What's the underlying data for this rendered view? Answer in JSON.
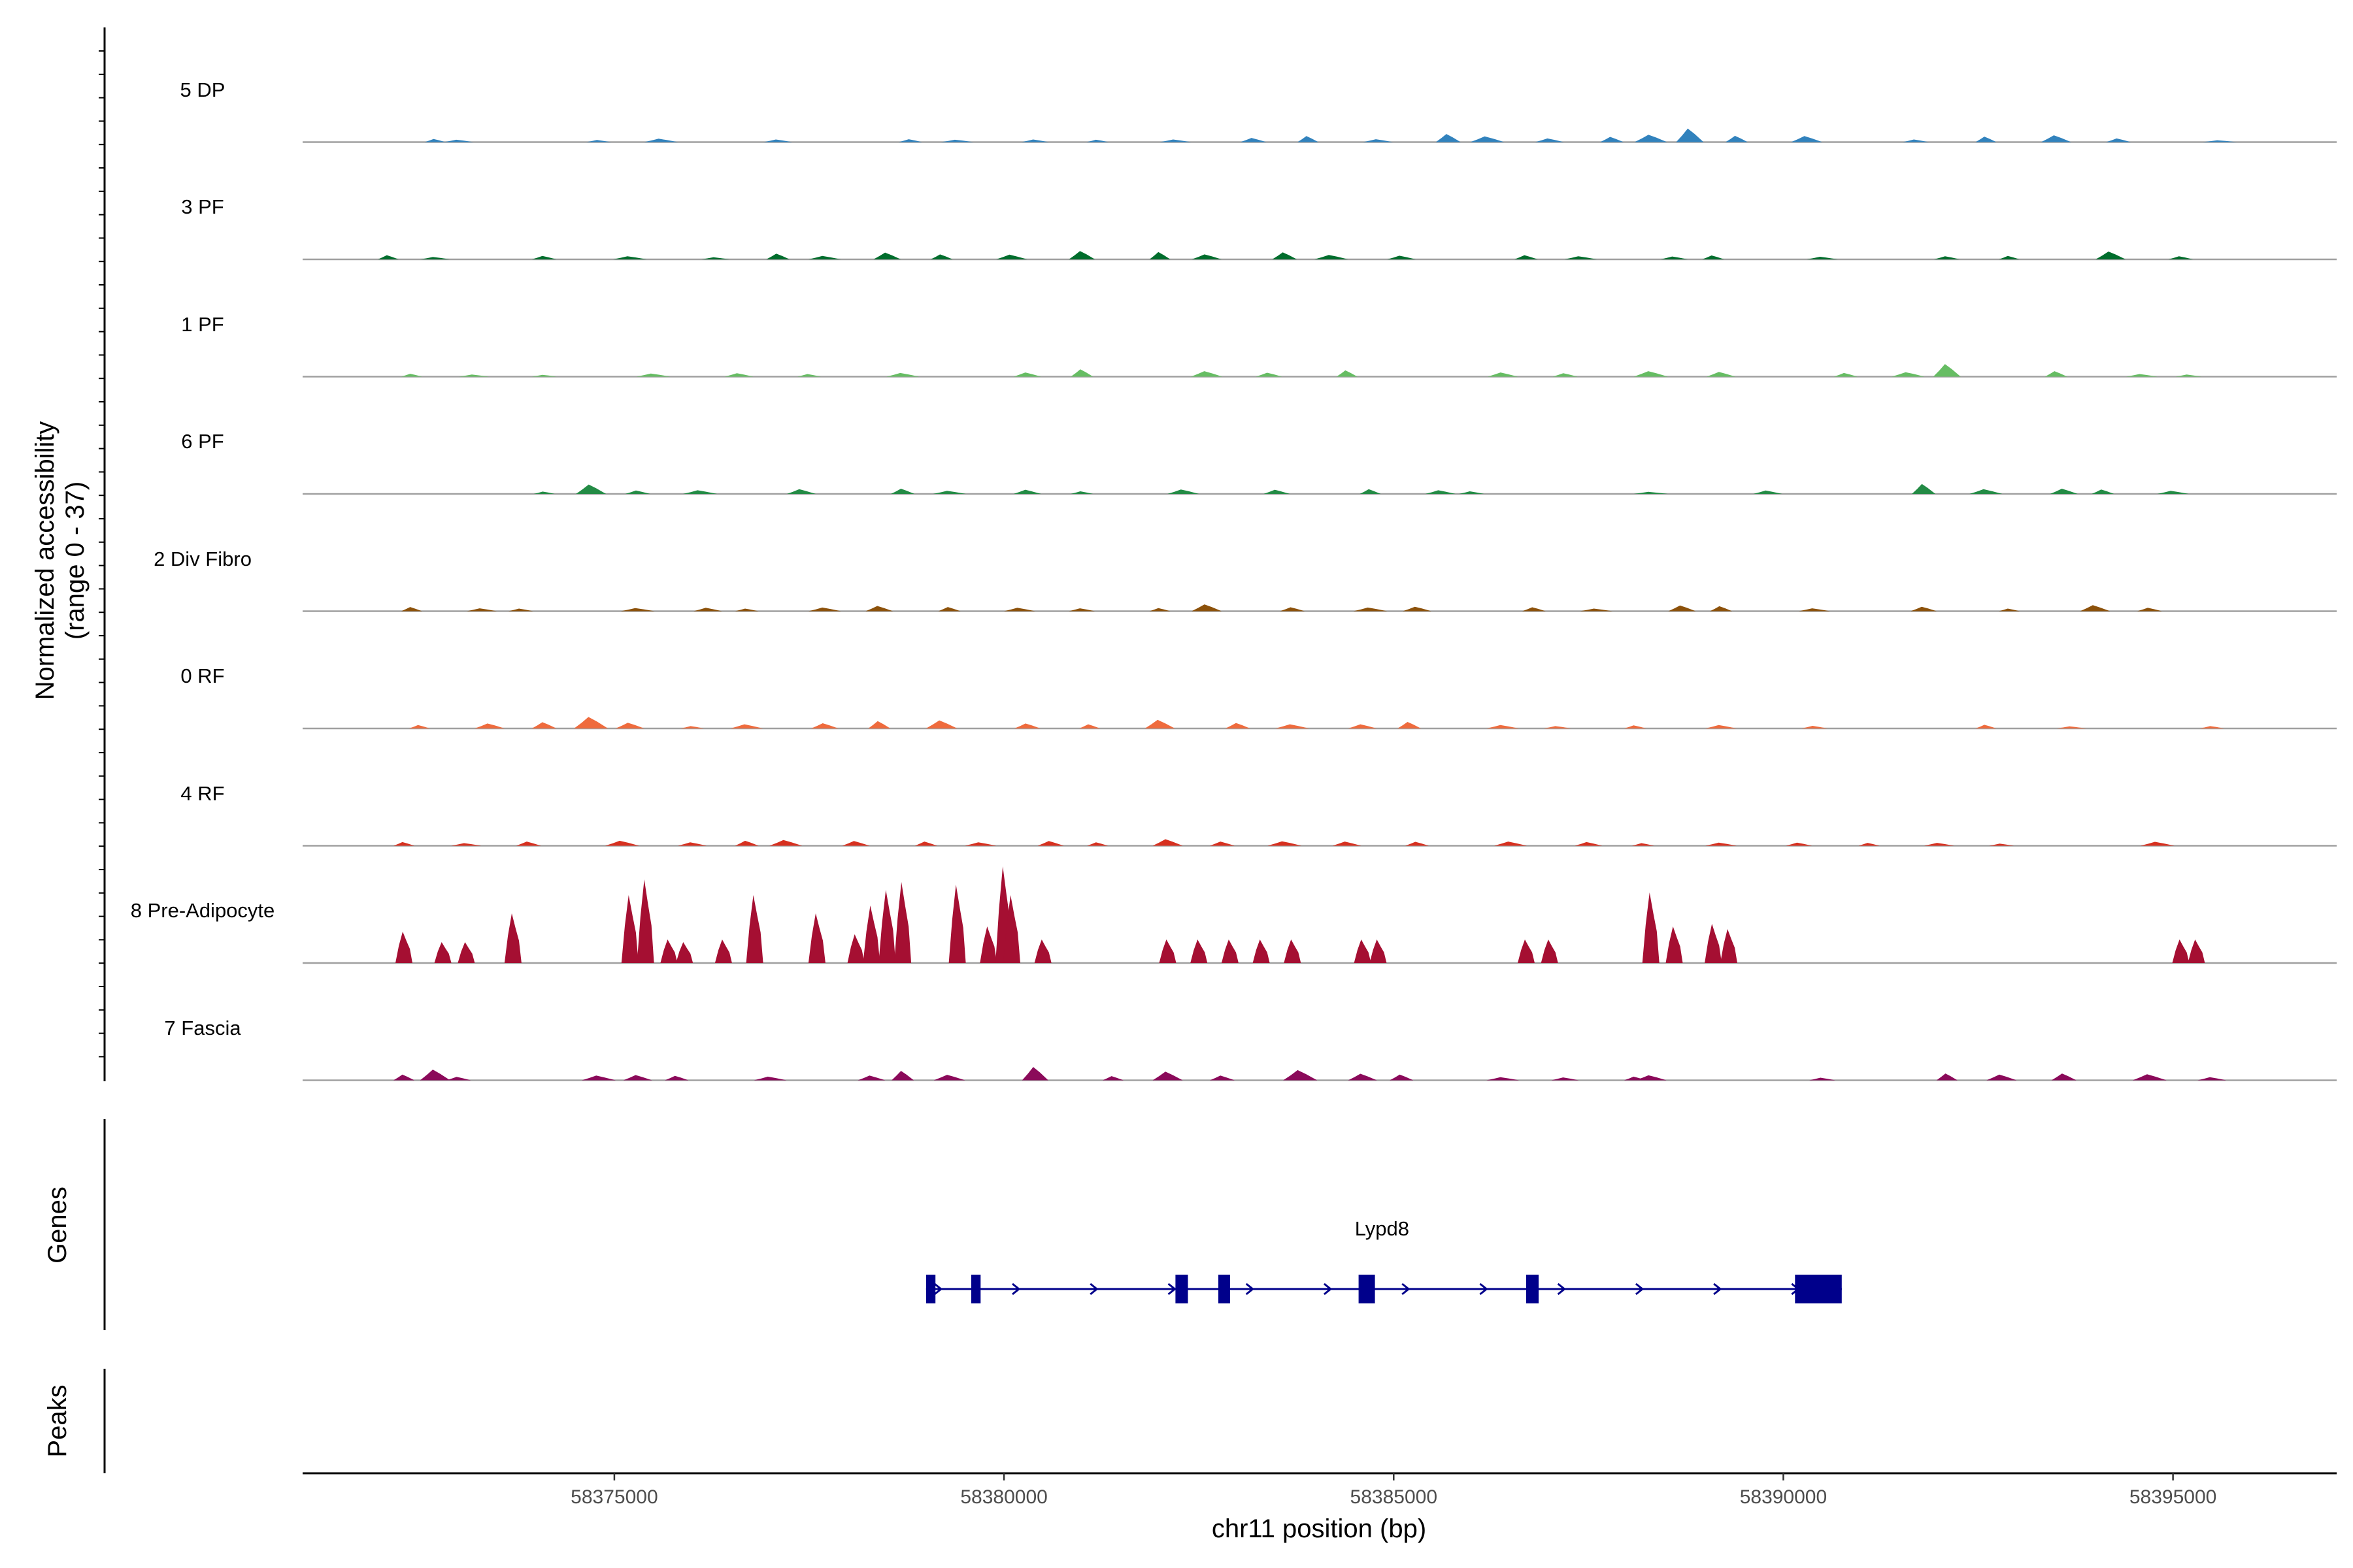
{
  "chart_data": {
    "type": "area",
    "title": "",
    "ylabel_line1": "Normalized accessibility",
    "ylabel_line2": "(range 0 - 37)",
    "y_range": [
      0,
      37
    ],
    "xlabel": "chr11 position (bp)",
    "chromosome": "chr11",
    "x_range": [
      58371000,
      58397100
    ],
    "x_ticks": [
      58375000,
      58380000,
      58385000,
      58390000,
      58395000
    ],
    "x_tick_labels": [
      "58375000",
      "58380000",
      "58385000",
      "58390000",
      "58395000"
    ],
    "genes_panel_label": "Genes",
    "peaks_panel_label": "Peaks",
    "tracks": [
      {
        "name": "5 DP",
        "color": "#3182bd",
        "peaks": [
          [
            58372700,
            1.2
          ],
          [
            58373000,
            0.9
          ],
          [
            58374800,
            0.8
          ],
          [
            58375600,
            1.3
          ],
          [
            58377100,
            1.0
          ],
          [
            58378800,
            1.1
          ],
          [
            58379400,
            0.9
          ],
          [
            58380400,
            1.0
          ],
          [
            58381200,
            0.9
          ],
          [
            58382200,
            1.0
          ],
          [
            58383200,
            1.6
          ],
          [
            58383900,
            2.3
          ],
          [
            58384800,
            1.1
          ],
          [
            58385700,
            3.1
          ],
          [
            58386200,
            2.2
          ],
          [
            58387000,
            1.4
          ],
          [
            58387800,
            2.0
          ],
          [
            58388300,
            2.8
          ],
          [
            58388800,
            5.2
          ],
          [
            58389400,
            2.4
          ],
          [
            58390300,
            2.3
          ],
          [
            58391700,
            1.0
          ],
          [
            58392600,
            2.1
          ],
          [
            58393500,
            2.6
          ],
          [
            58394300,
            1.4
          ],
          [
            58395600,
            0.7
          ]
        ]
      },
      {
        "name": "3 PF",
        "color": "#006d2c",
        "peaks": [
          [
            58372100,
            1.6
          ],
          [
            58372700,
            0.9
          ],
          [
            58374100,
            1.3
          ],
          [
            58375200,
            1.2
          ],
          [
            58376300,
            0.8
          ],
          [
            58377100,
            2.2
          ],
          [
            58377700,
            1.3
          ],
          [
            58378500,
            2.6
          ],
          [
            58379200,
            1.9
          ],
          [
            58380100,
            1.8
          ],
          [
            58381000,
            3.2
          ],
          [
            58382000,
            2.8
          ],
          [
            58382600,
            1.9
          ],
          [
            58383600,
            2.7
          ],
          [
            58384200,
            1.7
          ],
          [
            58385100,
            1.4
          ],
          [
            58386700,
            1.6
          ],
          [
            58387400,
            1.2
          ],
          [
            58388600,
            1.1
          ],
          [
            58389100,
            1.5
          ],
          [
            58390500,
            1.0
          ],
          [
            58392100,
            1.2
          ],
          [
            58392900,
            1.3
          ],
          [
            58394200,
            3.0
          ],
          [
            58395100,
            1.2
          ]
        ]
      },
      {
        "name": "1 PF",
        "color": "#66bd63",
        "peaks": [
          [
            58372400,
            1.1
          ],
          [
            58373200,
            0.8
          ],
          [
            58374100,
            0.7
          ],
          [
            58375500,
            1.2
          ],
          [
            58376600,
            1.3
          ],
          [
            58377500,
            1.0
          ],
          [
            58378700,
            1.4
          ],
          [
            58380300,
            1.6
          ],
          [
            58381000,
            2.8
          ],
          [
            58382600,
            2.1
          ],
          [
            58383400,
            1.5
          ],
          [
            58384400,
            2.4
          ],
          [
            58386400,
            1.6
          ],
          [
            58387200,
            1.3
          ],
          [
            58388300,
            2.1
          ],
          [
            58389200,
            1.8
          ],
          [
            58390800,
            1.4
          ],
          [
            58391600,
            1.7
          ],
          [
            58392100,
            4.8
          ],
          [
            58393500,
            2.1
          ],
          [
            58394600,
            1.0
          ],
          [
            58395200,
            0.8
          ]
        ]
      },
      {
        "name": "6 PF",
        "color": "#238b45",
        "peaks": [
          [
            58374100,
            0.9
          ],
          [
            58374700,
            3.6
          ],
          [
            58375300,
            1.3
          ],
          [
            58376100,
            1.4
          ],
          [
            58377400,
            1.8
          ],
          [
            58378700,
            2.0
          ],
          [
            58379300,
            1.2
          ],
          [
            58380300,
            1.6
          ],
          [
            58381000,
            1.0
          ],
          [
            58382300,
            1.7
          ],
          [
            58383500,
            1.6
          ],
          [
            58384700,
            1.8
          ],
          [
            58385600,
            1.4
          ],
          [
            58386000,
            1.0
          ],
          [
            58388300,
            0.8
          ],
          [
            58389800,
            1.3
          ],
          [
            58391800,
            3.8
          ],
          [
            58392600,
            1.8
          ],
          [
            58393600,
            2.0
          ],
          [
            58394100,
            1.7
          ],
          [
            58395000,
            1.2
          ]
        ]
      },
      {
        "name": "2 Div Fibro",
        "color": "#8c510a",
        "peaks": [
          [
            58372400,
            1.6
          ],
          [
            58373300,
            1.1
          ],
          [
            58373800,
            1.0
          ],
          [
            58375300,
            1.2
          ],
          [
            58376200,
            1.3
          ],
          [
            58376700,
            1.0
          ],
          [
            58377700,
            1.4
          ],
          [
            58378400,
            2.0
          ],
          [
            58379300,
            1.6
          ],
          [
            58380200,
            1.3
          ],
          [
            58381000,
            1.1
          ],
          [
            58382000,
            1.2
          ],
          [
            58382600,
            2.6
          ],
          [
            58383700,
            1.5
          ],
          [
            58384700,
            1.4
          ],
          [
            58385300,
            1.7
          ],
          [
            58386800,
            1.5
          ],
          [
            58387600,
            1.0
          ],
          [
            58388700,
            2.2
          ],
          [
            58389200,
            1.9
          ],
          [
            58390400,
            1.1
          ],
          [
            58391800,
            1.7
          ],
          [
            58392900,
            1.0
          ],
          [
            58394000,
            2.3
          ],
          [
            58394700,
            1.3
          ]
        ]
      },
      {
        "name": "0 RF",
        "color": "#ef6b3d",
        "peaks": [
          [
            58372500,
            1.3
          ],
          [
            58373400,
            1.9
          ],
          [
            58374100,
            2.4
          ],
          [
            58374700,
            4.4
          ],
          [
            58375200,
            2.2
          ],
          [
            58376000,
            0.9
          ],
          [
            58376700,
            1.6
          ],
          [
            58377700,
            2.0
          ],
          [
            58378400,
            2.8
          ],
          [
            58379200,
            3.1
          ],
          [
            58380300,
            1.9
          ],
          [
            58381100,
            1.6
          ],
          [
            58382000,
            3.3
          ],
          [
            58383000,
            2.1
          ],
          [
            58383700,
            1.6
          ],
          [
            58384600,
            1.6
          ],
          [
            58385200,
            2.5
          ],
          [
            58386400,
            1.3
          ],
          [
            58387100,
            0.9
          ],
          [
            58388100,
            1.2
          ],
          [
            58389200,
            1.3
          ],
          [
            58390400,
            1.0
          ],
          [
            58392600,
            1.4
          ],
          [
            58393700,
            0.8
          ],
          [
            58395500,
            0.9
          ]
        ]
      },
      {
        "name": "4 RF",
        "color": "#d7301f",
        "peaks": [
          [
            58372300,
            1.4
          ],
          [
            58373100,
            1.0
          ],
          [
            58373900,
            1.6
          ],
          [
            58375100,
            1.9
          ],
          [
            58376000,
            1.3
          ],
          [
            58376700,
            1.9
          ],
          [
            58377200,
            2.2
          ],
          [
            58378100,
            1.8
          ],
          [
            58379000,
            1.6
          ],
          [
            58379700,
            1.3
          ],
          [
            58380600,
            1.8
          ],
          [
            58381200,
            1.3
          ],
          [
            58382100,
            2.5
          ],
          [
            58382800,
            1.6
          ],
          [
            58383600,
            1.7
          ],
          [
            58384400,
            1.6
          ],
          [
            58385300,
            1.5
          ],
          [
            58386500,
            1.6
          ],
          [
            58387500,
            1.4
          ],
          [
            58388200,
            1.0
          ],
          [
            58389200,
            1.2
          ],
          [
            58390200,
            1.2
          ],
          [
            58391100,
            1.1
          ],
          [
            58392000,
            1.1
          ],
          [
            58392800,
            0.8
          ],
          [
            58394800,
            1.5
          ]
        ]
      },
      {
        "name": "8 Pre-Adipocyte",
        "color": "#a50f32",
        "peaks": [
          [
            58372300,
            12
          ],
          [
            58372800,
            8
          ],
          [
            58373100,
            8
          ],
          [
            58373700,
            19
          ],
          [
            58375200,
            26
          ],
          [
            58375400,
            32
          ],
          [
            58375700,
            9
          ],
          [
            58375900,
            8
          ],
          [
            58376400,
            9
          ],
          [
            58376800,
            26
          ],
          [
            58377600,
            19
          ],
          [
            58378100,
            11
          ],
          [
            58378300,
            22
          ],
          [
            58378500,
            28
          ],
          [
            58378700,
            31
          ],
          [
            58379400,
            30
          ],
          [
            58379800,
            14
          ],
          [
            58380000,
            37
          ],
          [
            58380100,
            26
          ],
          [
            58380500,
            9
          ],
          [
            58382100,
            9
          ],
          [
            58382500,
            9
          ],
          [
            58382900,
            9
          ],
          [
            58383300,
            9
          ],
          [
            58383700,
            9
          ],
          [
            58384600,
            9
          ],
          [
            58384800,
            9
          ],
          [
            58386700,
            9
          ],
          [
            58387000,
            9
          ],
          [
            58388300,
            27
          ],
          [
            58388600,
            14
          ],
          [
            58389100,
            15
          ],
          [
            58389300,
            13
          ],
          [
            58395100,
            9
          ],
          [
            58395300,
            9
          ]
        ]
      },
      {
        "name": "7 Fascia",
        "color": "#8b0a5a",
        "peaks": [
          [
            58372300,
            2.2
          ],
          [
            58372700,
            4.1
          ],
          [
            58373000,
            1.3
          ],
          [
            58374800,
            1.8
          ],
          [
            58375300,
            2.0
          ],
          [
            58375800,
            1.7
          ],
          [
            58377000,
            1.4
          ],
          [
            58378300,
            1.8
          ],
          [
            58378700,
            3.6
          ],
          [
            58379300,
            2.1
          ],
          [
            58380400,
            5.1
          ],
          [
            58381400,
            1.6
          ],
          [
            58382100,
            3.3
          ],
          [
            58382800,
            1.8
          ],
          [
            58383800,
            3.9
          ],
          [
            58384600,
            2.5
          ],
          [
            58385100,
            2.2
          ],
          [
            58386400,
            1.2
          ],
          [
            58387200,
            1.1
          ],
          [
            58388100,
            1.4
          ],
          [
            58388300,
            1.9
          ],
          [
            58390500,
            1.0
          ],
          [
            58392100,
            2.6
          ],
          [
            58392800,
            2.2
          ],
          [
            58393600,
            2.6
          ],
          [
            58394700,
            2.3
          ],
          [
            58395500,
            1.2
          ]
        ]
      }
    ],
    "gene": {
      "name": "Lypd8",
      "color": "#00008b",
      "strand": "+",
      "start": 58379000,
      "end": 58390750,
      "exons": [
        [
          58379000,
          58379120
        ],
        [
          58379580,
          58379700
        ],
        [
          58382200,
          58382360
        ],
        [
          58382750,
          58382900
        ],
        [
          58384550,
          58384760
        ],
        [
          58386700,
          58386860
        ],
        [
          58390150,
          58390750
        ]
      ]
    }
  }
}
